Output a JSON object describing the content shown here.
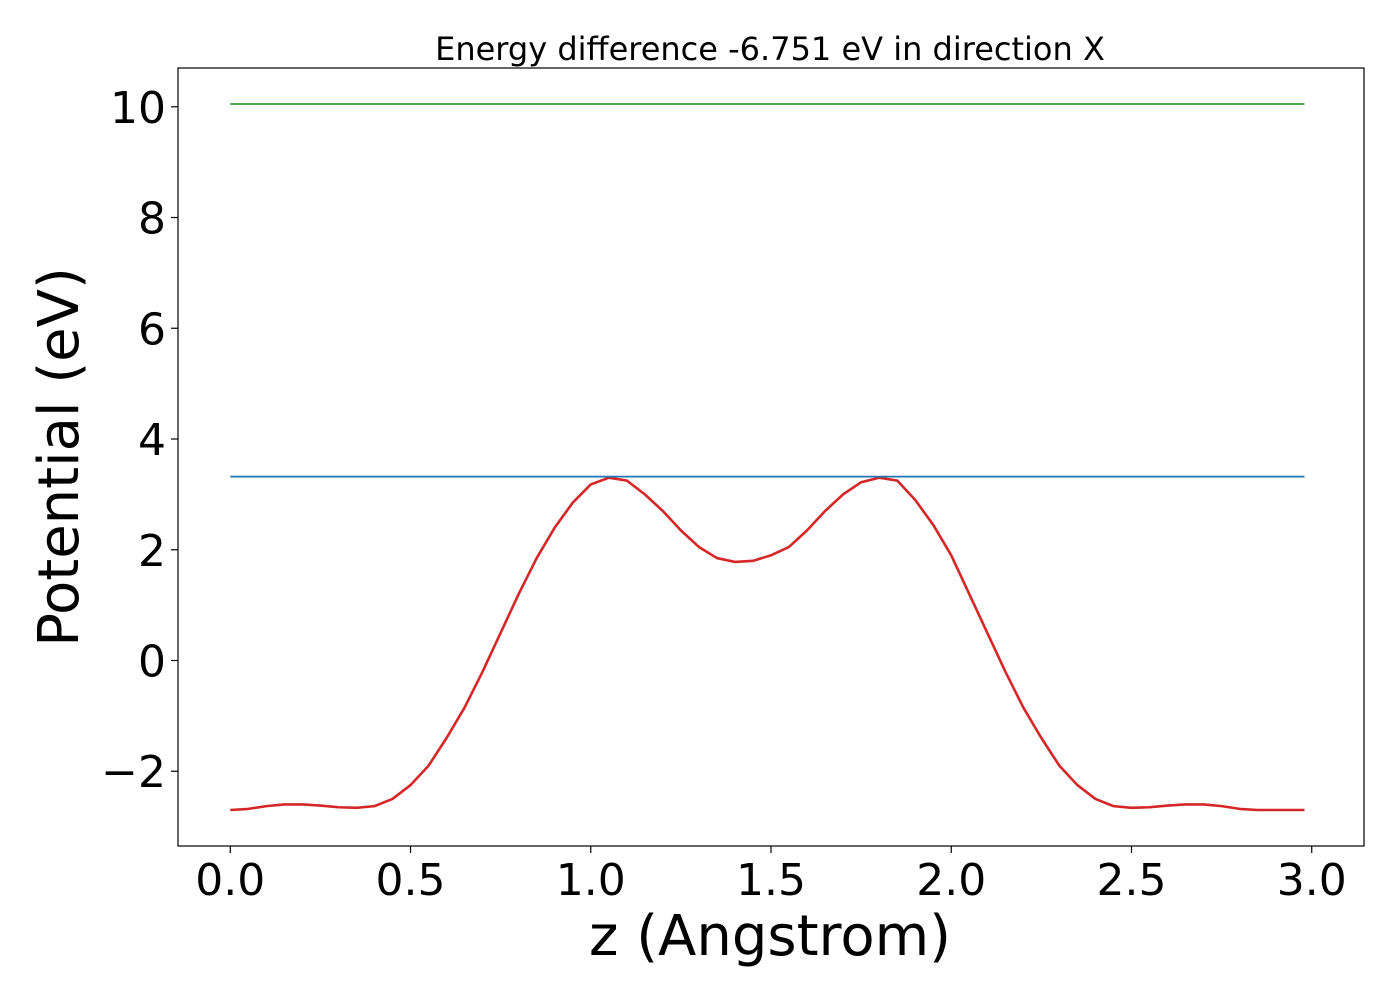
{
  "chart_data": {
    "type": "line",
    "title": "Energy difference -6.751 eV in direction X",
    "xlabel": "z (Angstrom)",
    "ylabel": "Potential (eV)",
    "xlim": [
      -0.145,
      3.145
    ],
    "ylim": [
      -3.35,
      10.7
    ],
    "grid": false,
    "x_ticks": [
      0.0,
      0.5,
      1.0,
      1.5,
      2.0,
      2.5,
      3.0
    ],
    "x_tick_labels": [
      "0.0",
      "0.5",
      "1.0",
      "1.5",
      "2.0",
      "2.5",
      "3.0"
    ],
    "y_ticks": [
      -2,
      0,
      2,
      4,
      6,
      8,
      10
    ],
    "y_tick_labels": [
      "−2",
      "0",
      "2",
      "4",
      "6",
      "8",
      "10"
    ],
    "series": [
      {
        "color": "#d62728",
        "x": [
          0.0,
          0.05,
          0.1,
          0.15,
          0.2,
          0.25,
          0.3,
          0.35,
          0.4,
          0.45,
          0.5,
          0.55,
          0.6,
          0.65,
          0.7,
          0.75,
          0.8,
          0.85,
          0.9,
          0.95,
          1.0,
          1.05,
          1.1,
          1.15,
          1.2,
          1.25,
          1.3,
          1.35,
          1.4,
          1.45,
          1.5,
          1.55,
          1.6,
          1.65,
          1.7,
          1.75,
          1.8,
          1.85,
          1.9,
          1.95,
          2.0,
          2.05,
          2.1,
          2.15,
          2.2,
          2.25,
          2.3,
          2.35,
          2.4,
          2.45,
          2.5,
          2.55,
          2.6,
          2.65,
          2.7,
          2.75,
          2.8,
          2.85,
          2.9,
          2.95,
          2.98
        ],
        "y": [
          -2.7,
          -2.68,
          -2.63,
          -2.6,
          -2.6,
          -2.62,
          -2.65,
          -2.66,
          -2.63,
          -2.5,
          -2.25,
          -1.9,
          -1.4,
          -0.85,
          -0.2,
          0.5,
          1.2,
          1.85,
          2.4,
          2.85,
          3.18,
          3.3,
          3.25,
          3.0,
          2.7,
          2.35,
          2.05,
          1.85,
          1.78,
          1.8,
          1.9,
          2.05,
          2.35,
          2.7,
          3.0,
          3.22,
          3.3,
          3.25,
          2.9,
          2.45,
          1.9,
          1.2,
          0.5,
          -0.2,
          -0.85,
          -1.4,
          -1.9,
          -2.25,
          -2.5,
          -2.63,
          -2.66,
          -2.65,
          -2.62,
          -2.6,
          -2.6,
          -2.63,
          -2.68,
          -2.7,
          -2.7,
          -2.7,
          -2.7
        ]
      },
      {
        "color": "#1f77b4",
        "x": [
          0.0,
          2.98
        ],
        "y": [
          3.32,
          3.32
        ]
      },
      {
        "color": "#2ca02c",
        "x": [
          0.0,
          2.98
        ],
        "y": [
          10.05,
          10.05
        ]
      }
    ]
  }
}
